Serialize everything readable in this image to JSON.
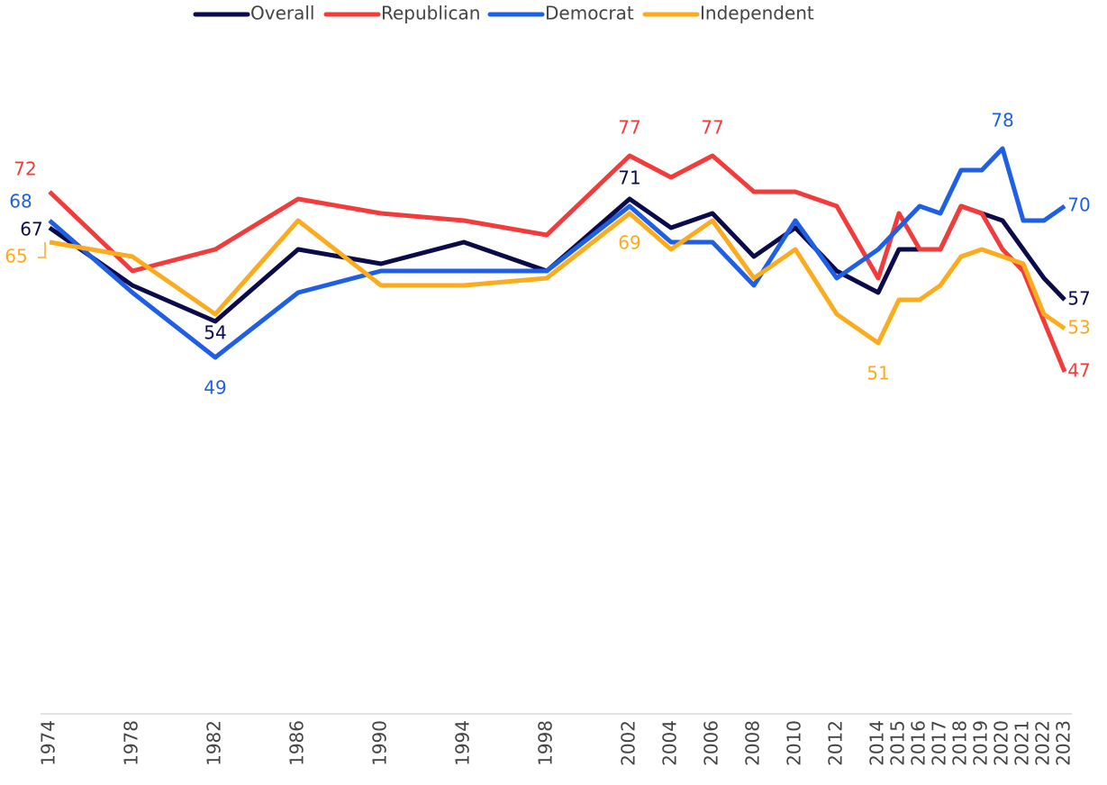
{
  "chart_data": {
    "type": "line",
    "x": [
      1974,
      1978,
      1982,
      1986,
      1990,
      1994,
      1998,
      2002,
      2004,
      2006,
      2008,
      2010,
      2012,
      2014,
      2015,
      2016,
      2017,
      2018,
      2019,
      2020,
      2021,
      2022,
      2023
    ],
    "series": [
      {
        "name": "Overall",
        "color": "#0b0a4a",
        "values": [
          67,
          59,
          54,
          64,
          62,
          65,
          61,
          71,
          67,
          69,
          63,
          67,
          61,
          58,
          64,
          64,
          64,
          70,
          69,
          68,
          64,
          60,
          57
        ]
      },
      {
        "name": "Republican",
        "color": "#f23c3c",
        "values": [
          72,
          61,
          64,
          71,
          69,
          68,
          66,
          77,
          74,
          77,
          72,
          72,
          70,
          60,
          69,
          64,
          64,
          70,
          69,
          64,
          61,
          54,
          47
        ]
      },
      {
        "name": "Democrat",
        "color": "#1f5fe6",
        "values": [
          68,
          58,
          49,
          58,
          61,
          61,
          61,
          70,
          65,
          65,
          59,
          68,
          60,
          64,
          67,
          70,
          69,
          75,
          75,
          78,
          68,
          68,
          70
        ]
      },
      {
        "name": "Independent",
        "color": "#fbab1e",
        "values": [
          65,
          63,
          55,
          68,
          59,
          59,
          60,
          69,
          64,
          68,
          60,
          64,
          55,
          51,
          57,
          57,
          59,
          63,
          64,
          63,
          62,
          55,
          53
        ]
      }
    ],
    "xlim": [
      1974,
      2023
    ],
    "xticks": [
      1974,
      1978,
      1982,
      1986,
      1990,
      1994,
      1998,
      2002,
      2004,
      2006,
      2008,
      2010,
      2012,
      2014,
      2015,
      2016,
      2017,
      2018,
      2019,
      2020,
      2021,
      2022,
      2023
    ],
    "ylim": [
      0,
      90
    ],
    "legend": "top"
  }
}
